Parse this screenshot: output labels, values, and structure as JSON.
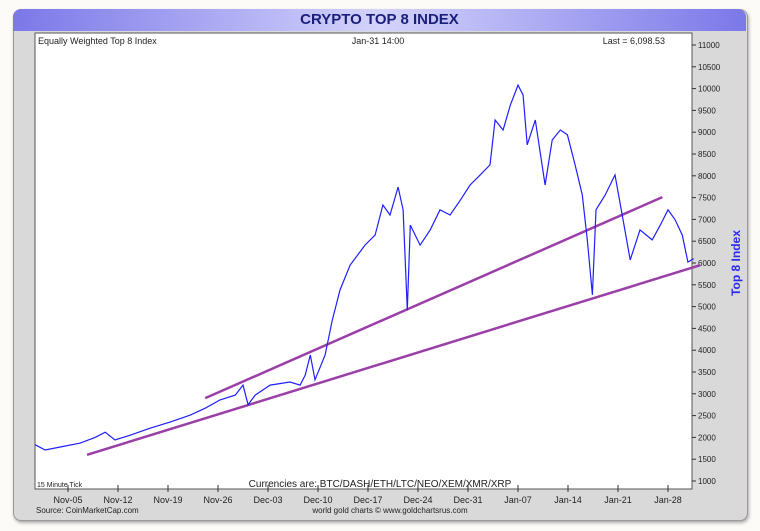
{
  "chart_data": {
    "type": "line",
    "title": "CRYPTO TOP 8 INDEX",
    "subtitle_left": "Equally Weighted Top 8 Index",
    "subtitle_center": "Jan-31  14:00",
    "subtitle_right": "Last = 6,098.53",
    "ylabel": "Top 8 Index",
    "ylim": [
      1000,
      11000
    ],
    "yticks": [
      1000,
      1500,
      2000,
      2500,
      3000,
      3500,
      4000,
      4500,
      5000,
      5500,
      6000,
      6500,
      7000,
      7500,
      8000,
      8500,
      9000,
      9500,
      10000,
      10500,
      11000
    ],
    "xticks": [
      {
        "label": "Nov-05",
        "date": "2017-11-05"
      },
      {
        "label": "Nov-12",
        "date": "2017-11-12"
      },
      {
        "label": "Nov-19",
        "date": "2017-11-19"
      },
      {
        "label": "Nov-26",
        "date": "2017-11-26"
      },
      {
        "label": "Dec-03",
        "date": "2017-12-03"
      },
      {
        "label": "Dec-10",
        "date": "2017-12-10"
      },
      {
        "label": "Dec-17",
        "date": "2017-12-17"
      },
      {
        "label": "Dec-24",
        "date": "2017-12-24"
      },
      {
        "label": "Dec-31",
        "date": "2017-12-31"
      },
      {
        "label": "Jan-07",
        "date": "2018-01-07"
      },
      {
        "label": "Jan-14",
        "date": "2018-01-14"
      },
      {
        "label": "Jan-21",
        "date": "2018-01-21"
      },
      {
        "label": "Jan-28",
        "date": "2018-01-28"
      }
    ],
    "grid": false,
    "series_color": "#1f1fff",
    "trendline_color": "#9b3fa8",
    "series": [
      {
        "points": [
          [
            "2017-10-31T10:00",
            1830
          ],
          [
            "2017-11-01T19:00",
            1710
          ],
          [
            "2017-11-03T22:00",
            1780
          ],
          [
            "2017-11-06T17:00",
            1870
          ],
          [
            "2017-11-08T19:00",
            2000
          ],
          [
            "2017-11-10T05:00",
            2120
          ],
          [
            "2017-11-11T14:00",
            1940
          ],
          [
            "2017-11-13T17:00",
            2050
          ],
          [
            "2017-11-16T12:00",
            2210
          ],
          [
            "2017-11-19T07:00",
            2350
          ],
          [
            "2017-11-22T02:00",
            2510
          ],
          [
            "2017-11-24T05:00",
            2670
          ],
          [
            "2017-11-26T07:00",
            2860
          ],
          [
            "2017-11-28T10:00",
            2970
          ],
          [
            "2017-11-29T12:00",
            3200
          ],
          [
            "2017-11-30T05:00",
            2750
          ],
          [
            "2017-12-01T05:00",
            2970
          ],
          [
            "2017-12-03T07:00",
            3200
          ],
          [
            "2017-12-06T02:00",
            3270
          ],
          [
            "2017-12-07T12:00",
            3200
          ],
          [
            "2017-12-08T05:00",
            3430
          ],
          [
            "2017-12-08T22:00",
            3890
          ],
          [
            "2017-12-09T14:00",
            3320
          ],
          [
            "2017-12-11T00:00",
            3890
          ],
          [
            "2017-12-12T00:00",
            4690
          ],
          [
            "2017-12-13T02:00",
            5380
          ],
          [
            "2017-12-14T12:00",
            5950
          ],
          [
            "2017-12-16T14:00",
            6410
          ],
          [
            "2017-12-18T00:00",
            6640
          ],
          [
            "2017-12-19T02:00",
            7330
          ],
          [
            "2017-12-20T02:00",
            7100
          ],
          [
            "2017-12-21T05:00",
            7740
          ],
          [
            "2017-12-21T22:00",
            7220
          ],
          [
            "2017-12-22T12:00",
            4920
          ],
          [
            "2017-12-22T22:00",
            6870
          ],
          [
            "2017-12-24T07:00",
            6410
          ],
          [
            "2017-12-25T17:00",
            6760
          ],
          [
            "2017-12-27T02:00",
            7220
          ],
          [
            "2017-12-28T12:00",
            7100
          ],
          [
            "2017-12-29T22:00",
            7440
          ],
          [
            "2017-12-31T07:00",
            7790
          ],
          [
            "2018-01-01T17:00",
            8020
          ],
          [
            "2018-01-03T02:00",
            8250
          ],
          [
            "2018-01-03T19:00",
            9280
          ],
          [
            "2018-01-04T22:00",
            9050
          ],
          [
            "2018-01-05T22:00",
            9620
          ],
          [
            "2018-01-07T00:00",
            10080
          ],
          [
            "2018-01-07T17:00",
            9850
          ],
          [
            "2018-01-08T07:00",
            8710
          ],
          [
            "2018-01-09T10:00",
            9280
          ],
          [
            "2018-01-10T19:00",
            7790
          ],
          [
            "2018-01-11T19:00",
            8820
          ],
          [
            "2018-01-12T22:00",
            9050
          ],
          [
            "2018-01-13T22:00",
            8940
          ],
          [
            "2018-01-15T00:00",
            8250
          ],
          [
            "2018-01-16T00:00",
            7560
          ],
          [
            "2018-01-16T17:00",
            6530
          ],
          [
            "2018-01-17T10:00",
            5270
          ],
          [
            "2018-01-17T22:00",
            7220
          ],
          [
            "2018-01-19T05:00",
            7560
          ],
          [
            "2018-01-20T14:00",
            8020
          ],
          [
            "2018-01-21T14:00",
            7100
          ],
          [
            "2018-01-22T17:00",
            6070
          ],
          [
            "2018-01-24T02:00",
            6760
          ],
          [
            "2018-01-25T19:00",
            6530
          ],
          [
            "2018-01-26T22:00",
            6870
          ],
          [
            "2018-01-28T00:00",
            7220
          ],
          [
            "2018-01-29T00:00",
            6990
          ],
          [
            "2018-01-30T00:00",
            6640
          ],
          [
            "2018-01-30T19:00",
            6020
          ],
          [
            "2018-01-31T14:00",
            6098.53
          ]
        ]
      }
    ],
    "trendlines": [
      {
        "from": [
          "2017-11-24T05:00",
          2900
        ],
        "to": [
          "2018-01-27T05:00",
          7510
        ]
      },
      {
        "from": [
          "2017-11-07T16:00",
          1600
        ],
        "to": [
          "2018-02-01T12:00",
          5950
        ]
      }
    ],
    "annotations": {
      "tick_note": "15 Minute Tick",
      "currencies": "Currencies are:  BTC/DASH/ETH/LTC/NEO/XEM/XMR/XRP",
      "source": "Source: CoinMarketCap.com",
      "credit": "world gold charts © www.goldchartsrus.com"
    }
  }
}
